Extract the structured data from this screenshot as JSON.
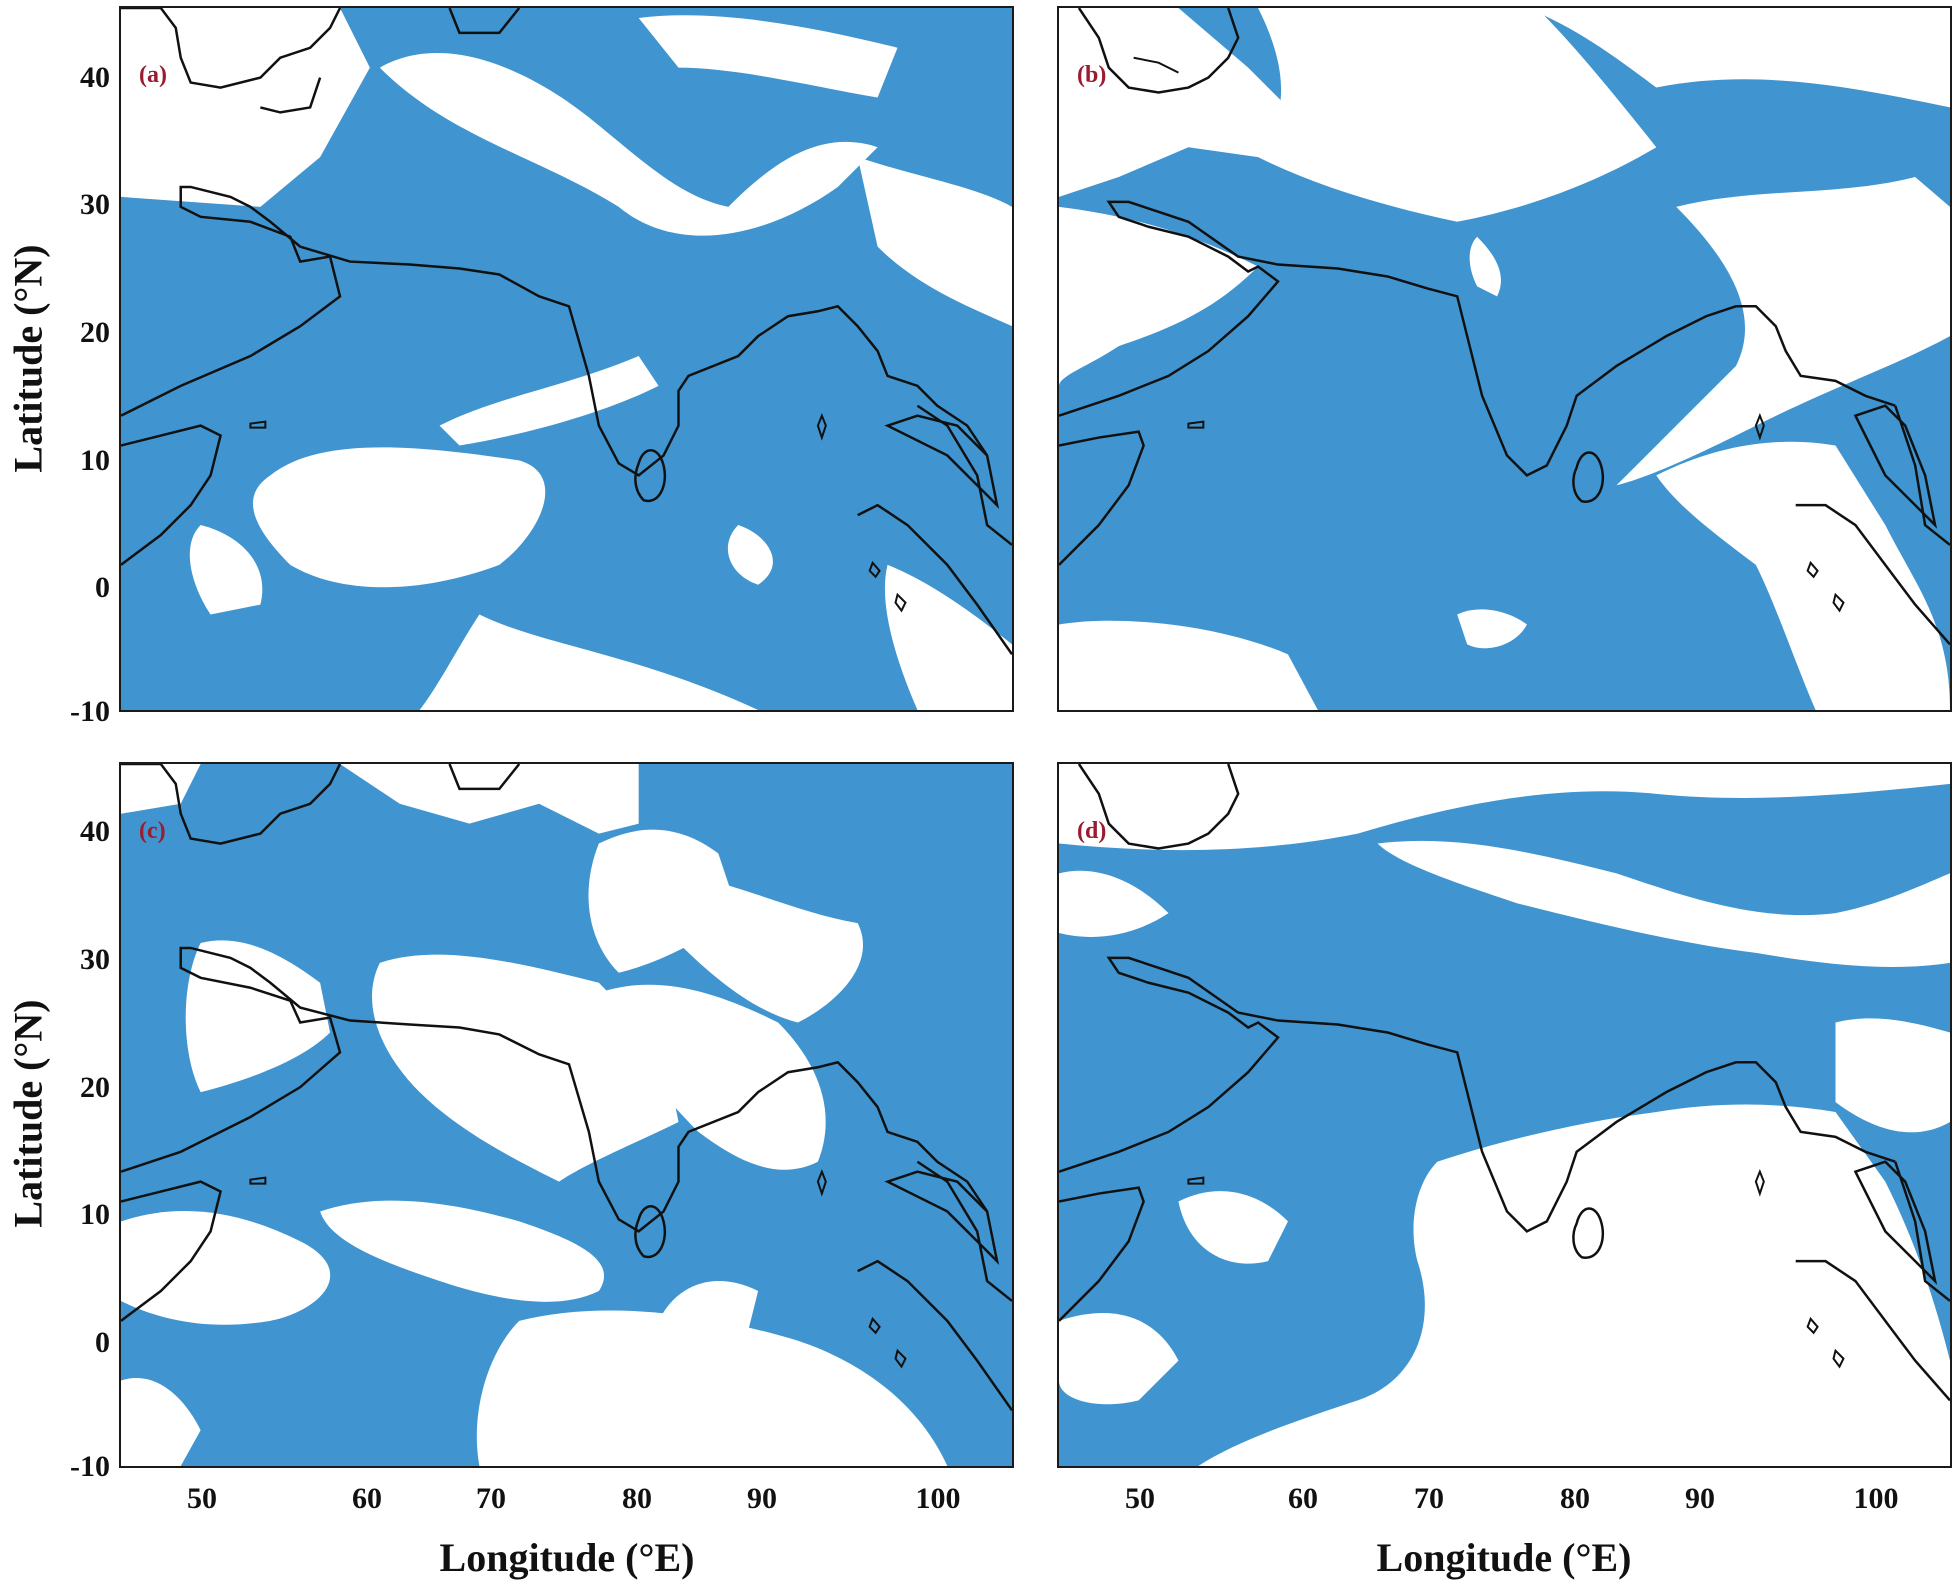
{
  "panels": [
    {
      "label": "(a)",
      "variant": 0
    },
    {
      "label": "(b)",
      "variant": 1
    },
    {
      "label": "(c)",
      "variant": 2
    },
    {
      "label": "(d)",
      "variant": 3
    }
  ],
  "axes": {
    "x_label": "Longitude (°E)",
    "y_label": "Latitude (°N)",
    "x_ticks": [
      "50",
      "60",
      "70",
      "80",
      "90",
      "100"
    ],
    "y_ticks": [
      "40",
      "30",
      "20",
      "10",
      "0",
      "-10"
    ],
    "x_range": [
      44.5,
      105.5
    ],
    "y_range": [
      -10,
      45
    ]
  },
  "colors": {
    "clear_sky": "#4095d0",
    "cloud": "#ffffff",
    "coastline": "#111111",
    "panel_label": "#9b1b30"
  }
}
